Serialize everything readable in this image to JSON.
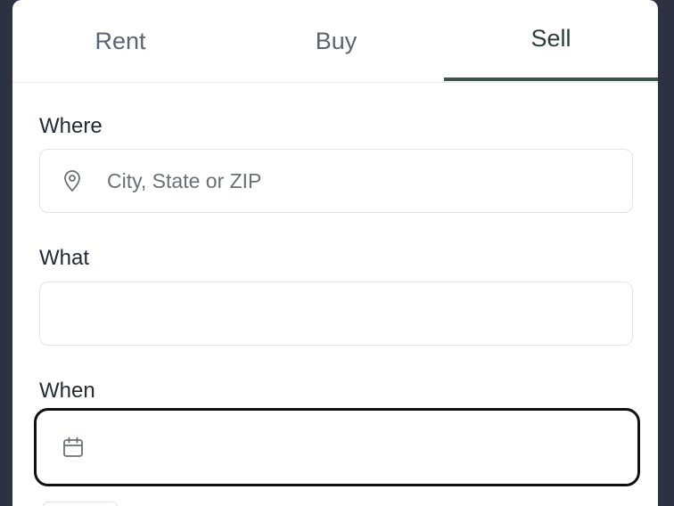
{
  "tabs": [
    {
      "label": "Rent",
      "active": false
    },
    {
      "label": "Buy",
      "active": false
    },
    {
      "label": "Sell",
      "active": true
    }
  ],
  "where": {
    "label": "Where",
    "placeholder": "City, State or ZIP",
    "value": "",
    "icon": "location-pin-icon"
  },
  "what": {
    "label": "What",
    "value": ""
  },
  "when": {
    "label": "When",
    "value": "",
    "icon": "calendar-icon"
  },
  "colors": {
    "accent": "#3a5446",
    "backdrop": "#2e3142"
  }
}
